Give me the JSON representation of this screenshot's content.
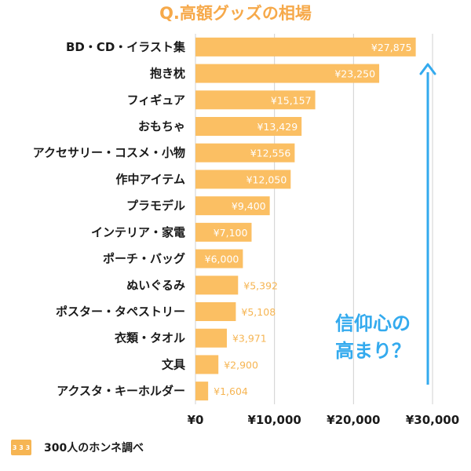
{
  "chart_data": {
    "type": "bar",
    "orientation": "horizontal",
    "title": "Q.高額グッズの相場",
    "categories": [
      "BD・CD・イラスト集",
      "抱き枕",
      "フィギュア",
      "おもちゃ",
      "アクセサリー・コスメ・小物",
      "作中アイテム",
      "プラモデル",
      "インテリア・家電",
      "ポーチ・バッグ",
      "ぬいぐるみ",
      "ポスター・タペストリー",
      "衣類・タオル",
      "文具",
      "アクスタ・キーホルダー"
    ],
    "values": [
      27875,
      23250,
      15157,
      13429,
      12556,
      12050,
      9400,
      7100,
      6000,
      5392,
      5108,
      3971,
      2900,
      1604
    ],
    "value_labels": [
      "¥27,875",
      "¥23,250",
      "¥15,157",
      "¥13,429",
      "¥12,556",
      "¥12,050",
      "¥9,400",
      "¥7,100",
      "¥6,000",
      "¥5,392",
      "¥5,108",
      "¥3,971",
      "¥2,900",
      "¥1,604"
    ],
    "xlim": [
      0,
      30000
    ],
    "xticks": [
      0,
      10000,
      20000,
      30000
    ],
    "xtick_labels": [
      "¥0",
      "¥10,000",
      "¥20,000",
      "¥30,000"
    ],
    "grid": true,
    "annotation": [
      "信仰心の",
      "高まり？"
    ],
    "source": "300人のホンネ調べ",
    "logo_text": "3 3 3"
  },
  "colors": {
    "bar": "#fbbf63",
    "title": "#f6a94a",
    "annotation": "#33aaee",
    "grid": "#d0d0d0",
    "logo": "#f6b553"
  }
}
